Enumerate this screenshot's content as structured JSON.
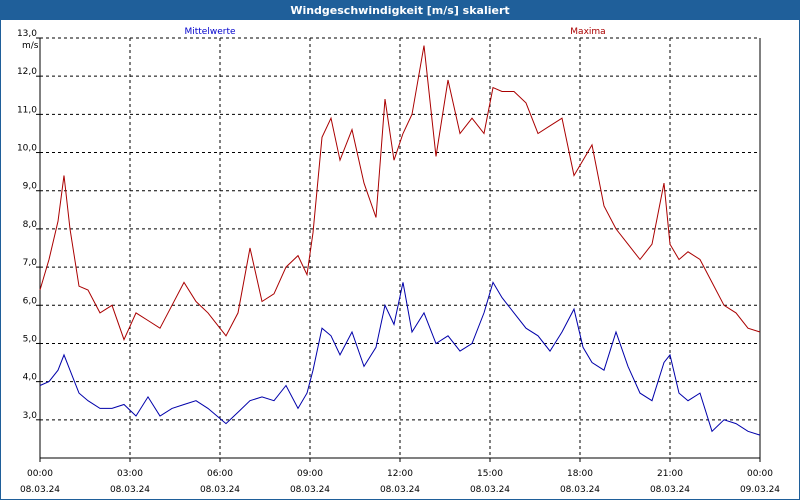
{
  "window": {
    "title": "Windgeschwindigkeit [m/s] skaliert"
  },
  "chart_data": {
    "type": "line",
    "title": "Windgeschwindigkeit [m/s] skaliert",
    "ylabel": "m/s",
    "ylim": [
      2.0,
      13.0
    ],
    "yticks": [
      "13,0",
      "12,0",
      "11,0",
      "10,0",
      "9,0",
      "8,0",
      "7,0",
      "6,0",
      "5,0",
      "4,0",
      "3,0"
    ],
    "xlim": [
      0,
      24
    ],
    "xticks": [
      {
        "time": "00:00",
        "date": "08.03.24"
      },
      {
        "time": "03:00",
        "date": "08.03.24"
      },
      {
        "time": "06:00",
        "date": "08.03.24"
      },
      {
        "time": "09:00",
        "date": "08.03.24"
      },
      {
        "time": "12:00",
        "date": "08.03.24"
      },
      {
        "time": "15:00",
        "date": "08.03.24"
      },
      {
        "time": "18:00",
        "date": "08.03.24"
      },
      {
        "time": "21:00",
        "date": "08.03.24"
      },
      {
        "time": "00:00",
        "date": "09.03.24"
      }
    ],
    "grid": true,
    "colors": {
      "mean": "#0000aa",
      "max": "#aa0000",
      "grid": "#000000"
    },
    "series": [
      {
        "name": "Mittelwerte",
        "x": [
          0,
          0.3,
          0.6,
          0.8,
          1.0,
          1.3,
          1.6,
          2.0,
          2.4,
          2.8,
          3.2,
          3.6,
          4.0,
          4.4,
          4.8,
          5.2,
          5.6,
          5.9,
          6.2,
          6.6,
          7.0,
          7.4,
          7.8,
          8.2,
          8.6,
          8.9,
          9.1,
          9.4,
          9.7,
          10.0,
          10.4,
          10.8,
          11.2,
          11.5,
          11.8,
          12.1,
          12.4,
          12.8,
          13.2,
          13.6,
          14.0,
          14.4,
          14.8,
          15.1,
          15.4,
          15.8,
          16.2,
          16.6,
          17.0,
          17.4,
          17.8,
          18.1,
          18.4,
          18.8,
          19.2,
          19.6,
          20.0,
          20.4,
          20.8,
          21.0,
          21.3,
          21.6,
          22.0,
          22.4,
          22.8,
          23.2,
          23.6,
          24.0
        ],
        "values": [
          3.9,
          4.0,
          4.3,
          4.7,
          4.3,
          3.7,
          3.5,
          3.3,
          3.3,
          3.4,
          3.1,
          3.6,
          3.1,
          3.3,
          3.4,
          3.5,
          3.3,
          3.1,
          2.9,
          3.2,
          3.5,
          3.6,
          3.5,
          3.9,
          3.3,
          3.7,
          4.3,
          5.4,
          5.2,
          4.7,
          5.3,
          4.4,
          4.9,
          6.0,
          5.5,
          6.6,
          5.3,
          5.8,
          5.0,
          5.2,
          4.8,
          5.0,
          5.8,
          6.6,
          6.2,
          5.8,
          5.4,
          5.2,
          4.8,
          5.3,
          5.9,
          4.9,
          4.5,
          4.3,
          5.3,
          4.4,
          3.7,
          3.5,
          4.5,
          4.7,
          3.7,
          3.5,
          3.7,
          2.7,
          3.0,
          2.9,
          2.7,
          2.6
        ]
      },
      {
        "name": "Maxima",
        "x": [
          0,
          0.3,
          0.6,
          0.8,
          1.0,
          1.3,
          1.6,
          2.0,
          2.4,
          2.8,
          3.2,
          3.6,
          4.0,
          4.4,
          4.8,
          5.2,
          5.6,
          5.9,
          6.2,
          6.6,
          7.0,
          7.4,
          7.8,
          8.2,
          8.6,
          8.9,
          9.1,
          9.4,
          9.7,
          10.0,
          10.4,
          10.8,
          11.2,
          11.5,
          11.8,
          12.1,
          12.4,
          12.8,
          13.2,
          13.6,
          14.0,
          14.4,
          14.8,
          15.1,
          15.4,
          15.8,
          16.2,
          16.6,
          17.0,
          17.4,
          17.8,
          18.1,
          18.4,
          18.8,
          19.2,
          19.6,
          20.0,
          20.4,
          20.8,
          21.0,
          21.3,
          21.6,
          22.0,
          22.4,
          22.8,
          23.2,
          23.6,
          24.0
        ],
        "values": [
          6.4,
          7.2,
          8.2,
          9.4,
          8.0,
          6.5,
          6.4,
          5.8,
          6.0,
          5.1,
          5.8,
          5.6,
          5.4,
          6.0,
          6.6,
          6.1,
          5.8,
          5.5,
          5.2,
          5.8,
          7.5,
          6.1,
          6.3,
          7.0,
          7.3,
          6.8,
          7.9,
          10.4,
          10.9,
          9.8,
          10.6,
          9.2,
          8.3,
          11.4,
          9.8,
          10.5,
          11.0,
          12.8,
          9.9,
          11.9,
          10.5,
          10.9,
          10.5,
          11.7,
          11.6,
          11.6,
          11.3,
          10.5,
          10.7,
          10.9,
          9.4,
          9.8,
          10.2,
          8.6,
          8.0,
          7.6,
          7.2,
          7.6,
          9.2,
          7.6,
          7.2,
          7.4,
          7.2,
          6.6,
          6.0,
          5.8,
          5.4,
          5.3
        ]
      }
    ]
  }
}
